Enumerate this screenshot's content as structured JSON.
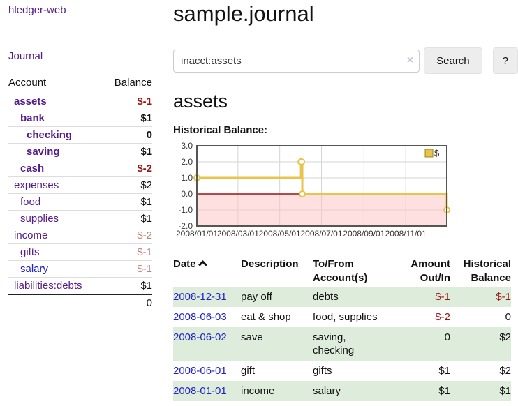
{
  "sidebar": {
    "brand": "hledger-web",
    "nav_journal": "Journal",
    "accounts_table": {
      "headers": [
        "Account",
        "Balance"
      ],
      "rows": [
        {
          "account": "assets",
          "indent": 1,
          "bold": true,
          "link": "purple",
          "balance": "$-1",
          "balance_class": "amt-neg"
        },
        {
          "account": "bank",
          "indent": 2,
          "bold": true,
          "link": "purple",
          "balance": "$1",
          "balance_class": "amt-pos"
        },
        {
          "account": "checking",
          "indent": 3,
          "bold": true,
          "link": "purple",
          "balance": "0",
          "balance_class": "amt-pos"
        },
        {
          "account": "saving",
          "indent": 3,
          "bold": true,
          "link": "purple",
          "balance": "$1",
          "balance_class": "amt-pos"
        },
        {
          "account": "cash",
          "indent": 2,
          "bold": true,
          "link": "purple",
          "balance": "$-2",
          "balance_class": "amt-neg"
        },
        {
          "account": "expenses",
          "indent": 1,
          "bold": false,
          "link": "purple",
          "balance": "$2",
          "balance_class": "amt-pos"
        },
        {
          "account": "food",
          "indent": 2,
          "bold": false,
          "link": "purple",
          "balance": "$1",
          "balance_class": "amt-pos"
        },
        {
          "account": "supplies",
          "indent": 2,
          "bold": false,
          "link": "purple",
          "balance": "$1",
          "balance_class": "amt-pos"
        },
        {
          "account": "income",
          "indent": 1,
          "bold": false,
          "link": "purple",
          "balance": "$-2",
          "balance_class": "amt-negsoft"
        },
        {
          "account": "gifts",
          "indent": 2,
          "bold": false,
          "link": "purple",
          "balance": "$-1",
          "balance_class": "amt-negsoft"
        },
        {
          "account": "salary",
          "indent": 2,
          "bold": false,
          "link": "blue",
          "balance": "$-1",
          "balance_class": "amt-negsoft"
        },
        {
          "account": "liabilities:debts",
          "indent": 1,
          "bold": false,
          "link": "purple",
          "balance": "$1",
          "balance_class": "amt-pos"
        }
      ],
      "total": "0"
    }
  },
  "main": {
    "title": "sample.journal",
    "search": {
      "value": "inacct:assets",
      "clear_icon": "×",
      "button": "Search",
      "help_button": "?"
    },
    "account_heading": "assets",
    "chart_label": "Historical Balance:"
  },
  "chart_data": {
    "type": "line",
    "title": "Historical Balance",
    "step": true,
    "series": [
      {
        "name": "$",
        "points": [
          [
            "2008-01-01",
            1
          ],
          [
            "2008-06-01",
            2
          ],
          [
            "2008-06-02",
            2
          ],
          [
            "2008-06-03",
            0
          ],
          [
            "2008-12-31",
            -1
          ]
        ]
      }
    ],
    "ylim": [
      -2,
      3
    ],
    "yticks": [
      3.0,
      2.0,
      1.0,
      0.0,
      -1.0,
      -2.0
    ],
    "xticks": [
      "2008/01/01",
      "2008/03/01",
      "2008/05/01",
      "2008/07/01",
      "2008/09/01",
      "2008/11/01"
    ],
    "x_range": [
      "2008-01-01",
      "2008-12-31"
    ],
    "grid": true,
    "legend": {
      "label": "$",
      "position": "top-right"
    },
    "colors": {
      "line": "#e8c44c",
      "marker_fill": "#ffffff",
      "zero_line": "#9c1212",
      "negative_area": "#ffc2c2",
      "border": "#555555",
      "grid": "#d5d5d5",
      "legend_fill": "#e8c44c",
      "legend_stroke": "#9c851f",
      "tick_text": "#333333"
    }
  },
  "transactions": {
    "headers": [
      "Date",
      "Description",
      "To/From Account(s)",
      "Amount Out/In",
      "Historical Balance"
    ],
    "rows": [
      {
        "date": "2008-12-31",
        "description": "pay off",
        "accounts": "debts",
        "amount": "$-1",
        "amount_class": "amt-neg",
        "balance": "$-1",
        "balance_class": "amt-neg"
      },
      {
        "date": "2008-06-03",
        "description": "eat & shop",
        "accounts": "food, supplies",
        "amount": "$-2",
        "amount_class": "amt-neg",
        "balance": "0",
        "balance_class": "amt-pos"
      },
      {
        "date": "2008-06-02",
        "description": "save",
        "accounts": "saving, checking",
        "amount": "0",
        "amount_class": "amt-pos",
        "balance": "$2",
        "balance_class": "amt-pos"
      },
      {
        "date": "2008-06-01",
        "description": "gift",
        "accounts": "gifts",
        "amount": "$1",
        "amount_class": "amt-pos",
        "balance": "$2",
        "balance_class": "amt-pos"
      },
      {
        "date": "2008-01-01",
        "description": "income",
        "accounts": "salary",
        "amount": "$1",
        "amount_class": "amt-pos",
        "balance": "$1",
        "balance_class": "amt-pos"
      }
    ]
  }
}
